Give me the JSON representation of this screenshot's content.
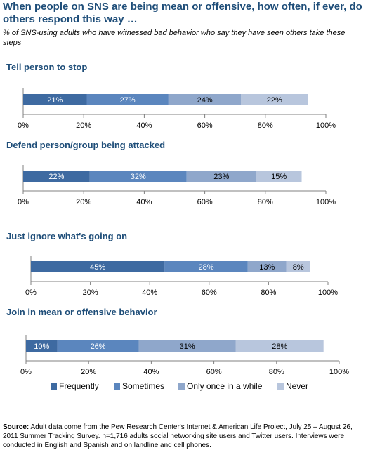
{
  "title": "When people on SNS are being mean or offensive, how often, if ever, do others respond this way …",
  "subtitle": "% of  SNS-using adults who have witnessed bad behavior who say they have seen others take these steps",
  "source": {
    "label": "Source:",
    "text": "Adult data come from the Pew Research Center's Internet & American Life Project, July 25 – August 26, 2011 Summer Tracking Survey. n=1,716 adults social networking site users and Twitter users. Interviews were conducted in English and Spanish and on landline and cell phones."
  },
  "colors": {
    "Frequently": "#3e6aa1",
    "Sometimes": "#5b86be",
    "Only once in a while": "#8fa7cb",
    "Never": "#b8c6dd"
  },
  "chart_data": [
    {
      "type": "bar",
      "orientation": "horizontal-stacked",
      "title": "Tell person to stop",
      "series": [
        {
          "name": "Frequently",
          "values": [
            21
          ]
        },
        {
          "name": "Sometimes",
          "values": [
            27
          ]
        },
        {
          "name": "Only once in a while",
          "values": [
            24
          ]
        },
        {
          "name": "Never",
          "values": [
            22
          ]
        }
      ],
      "xlim": [
        0,
        100
      ],
      "ticks": [
        "0%",
        "20%",
        "40%",
        "60%",
        "80%",
        "100%"
      ]
    },
    {
      "type": "bar",
      "orientation": "horizontal-stacked",
      "title": "Defend person/group being attacked",
      "series": [
        {
          "name": "Frequently",
          "values": [
            22
          ]
        },
        {
          "name": "Sometimes",
          "values": [
            32
          ]
        },
        {
          "name": "Only once in a while",
          "values": [
            23
          ]
        },
        {
          "name": "Never",
          "values": [
            15
          ]
        }
      ],
      "xlim": [
        0,
        100
      ],
      "ticks": [
        "0%",
        "20%",
        "40%",
        "60%",
        "80%",
        "100%"
      ]
    },
    {
      "type": "bar",
      "orientation": "horizontal-stacked",
      "title": "Just ignore what's going on",
      "series": [
        {
          "name": "Frequently",
          "values": [
            45
          ]
        },
        {
          "name": "Sometimes",
          "values": [
            28
          ]
        },
        {
          "name": "Only once in a while",
          "values": [
            13
          ]
        },
        {
          "name": "Never",
          "values": [
            8
          ]
        }
      ],
      "xlim": [
        0,
        100
      ],
      "ticks": [
        "0%",
        "20%",
        "40%",
        "60%",
        "80%",
        "100%"
      ]
    },
    {
      "type": "bar",
      "orientation": "horizontal-stacked",
      "title": "Join in mean or offensive behavior",
      "series": [
        {
          "name": "Frequently",
          "values": [
            10
          ]
        },
        {
          "name": "Sometimes",
          "values": [
            26
          ]
        },
        {
          "name": "Only once in a while",
          "values": [
            31
          ]
        },
        {
          "name": "Never",
          "values": [
            28
          ]
        }
      ],
      "xlim": [
        0,
        100
      ],
      "ticks": [
        "0%",
        "20%",
        "40%",
        "60%",
        "80%",
        "100%"
      ]
    }
  ],
  "legend": [
    "Frequently",
    "Sometimes",
    "Only once in a while",
    "Never"
  ]
}
